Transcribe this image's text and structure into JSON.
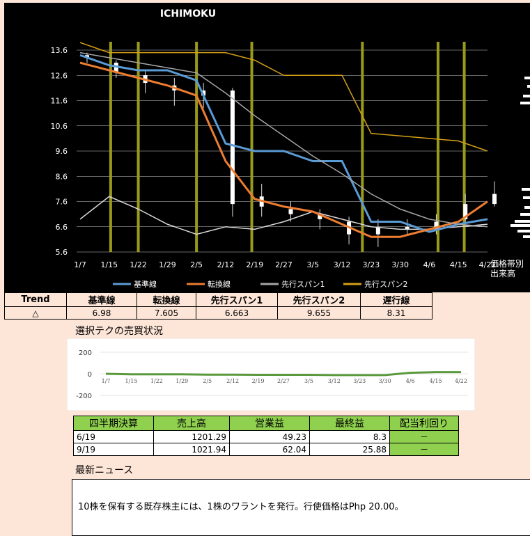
{
  "chart_data": [
    {
      "type": "line",
      "title": "ICHIMOKU",
      "categories": [
        "1/7",
        "1/15",
        "1/22",
        "1/29",
        "2/5",
        "2/12",
        "2/19",
        "2/27",
        "3/5",
        "3/12",
        "3/23",
        "3/30",
        "4/6",
        "4/15",
        "4/22"
      ],
      "y_ticks": [
        "13.6",
        "12.6",
        "11.6",
        "10.6",
        "9.6",
        "8.6",
        "7.6",
        "6.6",
        "5.6"
      ],
      "ylim": [
        5.6,
        14.0
      ],
      "side_label": "価格帯別\n出来高",
      "series": [
        {
          "name": "基準線",
          "color": "#5b9bd5",
          "values": [
            13.4,
            13.0,
            12.8,
            12.8,
            12.4,
            9.9,
            9.6,
            9.6,
            9.2,
            9.2,
            6.8,
            6.8,
            6.4,
            6.7,
            6.9
          ]
        },
        {
          "name": "転換線",
          "color": "#ed7d31",
          "values": [
            13.1,
            12.8,
            12.5,
            12.2,
            11.8,
            9.2,
            7.7,
            7.4,
            7.2,
            6.7,
            6.2,
            6.2,
            6.5,
            6.8,
            7.6
          ]
        },
        {
          "name": "先行スパン1",
          "color": "#a5a5a5",
          "values": [
            13.5,
            13.3,
            13.1,
            12.9,
            12.7,
            11.9,
            11.0,
            10.2,
            9.4,
            8.7,
            7.9,
            7.3,
            6.9,
            6.7,
            6.6
          ]
        },
        {
          "name": "先行スパン2",
          "color": "#d4a017",
          "values": [
            13.9,
            13.5,
            13.5,
            13.5,
            13.5,
            13.5,
            13.2,
            12.6,
            12.6,
            12.6,
            10.3,
            10.2,
            10.1,
            10.0,
            9.6
          ]
        }
      ],
      "lagging_values": [
        6.9,
        7.8,
        7.3,
        6.7,
        6.3,
        6.6,
        6.5,
        6.8,
        7.2,
        6.9,
        6.6,
        6.5,
        6.5,
        6.6,
        6.7
      ],
      "candles": [
        {
          "o": 13.4,
          "c": 13.3,
          "h": 13.5,
          "l": 13.1
        },
        {
          "o": 13.1,
          "c": 12.7,
          "h": 13.2,
          "l": 12.5
        },
        {
          "o": 12.6,
          "c": 12.3,
          "h": 12.8,
          "l": 11.9
        },
        {
          "o": 12.2,
          "c": 12.0,
          "h": 12.5,
          "l": 11.4
        },
        {
          "o": 12.0,
          "c": 11.8,
          "h": 12.3,
          "l": 11.3
        },
        {
          "o": 12.0,
          "c": 7.5,
          "h": 12.1,
          "l": 7.0
        },
        {
          "o": 7.4,
          "c": 7.8,
          "h": 8.3,
          "l": 7.0
        },
        {
          "o": 7.3,
          "c": 7.1,
          "h": 7.6,
          "l": 6.8
        },
        {
          "o": 7.1,
          "c": 6.9,
          "h": 7.3,
          "l": 6.5
        },
        {
          "o": 6.8,
          "c": 6.3,
          "h": 7.0,
          "l": 5.9
        },
        {
          "o": 6.3,
          "c": 6.6,
          "h": 6.9,
          "l": 5.8
        },
        {
          "o": 6.5,
          "c": 6.6,
          "h": 6.9,
          "l": 6.3
        },
        {
          "o": 6.5,
          "c": 6.8,
          "h": 7.1,
          "l": 6.3
        },
        {
          "o": 6.9,
          "c": 7.5,
          "h": 7.9,
          "l": 6.8
        },
        {
          "o": 7.5,
          "c": 7.9,
          "h": 8.4,
          "l": 7.4
        }
      ],
      "legend_position": "bottom",
      "grid": true
    },
    {
      "type": "line",
      "title": "選択テクの売買状況",
      "categories": [
        "1/7",
        "1/15",
        "1/22",
        "1/29",
        "2/5",
        "2/12",
        "2/19",
        "2/27",
        "3/5",
        "3/12",
        "3/23",
        "3/30",
        "4/6",
        "4/15",
        "4/22"
      ],
      "y_ticks": [
        "200",
        "0",
        "-200"
      ],
      "ylim": [
        -200,
        200
      ],
      "series": [
        {
          "color": "#5a9a3c",
          "values": [
            0,
            -5,
            -5,
            -5,
            -8,
            -8,
            -10,
            -10,
            -10,
            -12,
            -12,
            -12,
            10,
            15,
            15
          ]
        }
      ],
      "grid": true
    }
  ],
  "trend_table": {
    "headers": [
      "Trend",
      "基準線",
      "転換線",
      "先行スパン1",
      "先行スパン2",
      "遅行線"
    ],
    "values": [
      "△",
      "6.98",
      "7.605",
      "6.663",
      "9.655",
      "8.31"
    ]
  },
  "financials": {
    "headers": [
      "四半期決算",
      "売上高",
      "営業益",
      "最終益",
      "配当利回り"
    ],
    "rows": [
      {
        "q": "6/19",
        "sales": "1201.29",
        "op": "49.23",
        "net": "8.3",
        "div": "－"
      },
      {
        "q": "9/19",
        "sales": "1021.94",
        "op": "62.04",
        "net": "25.88",
        "div": "－"
      }
    ]
  },
  "news": {
    "title": "最新ニュース",
    "text": "10株を保有する既存株主には、1株のワラントを発行。行使価格はPhp 20.00。"
  }
}
